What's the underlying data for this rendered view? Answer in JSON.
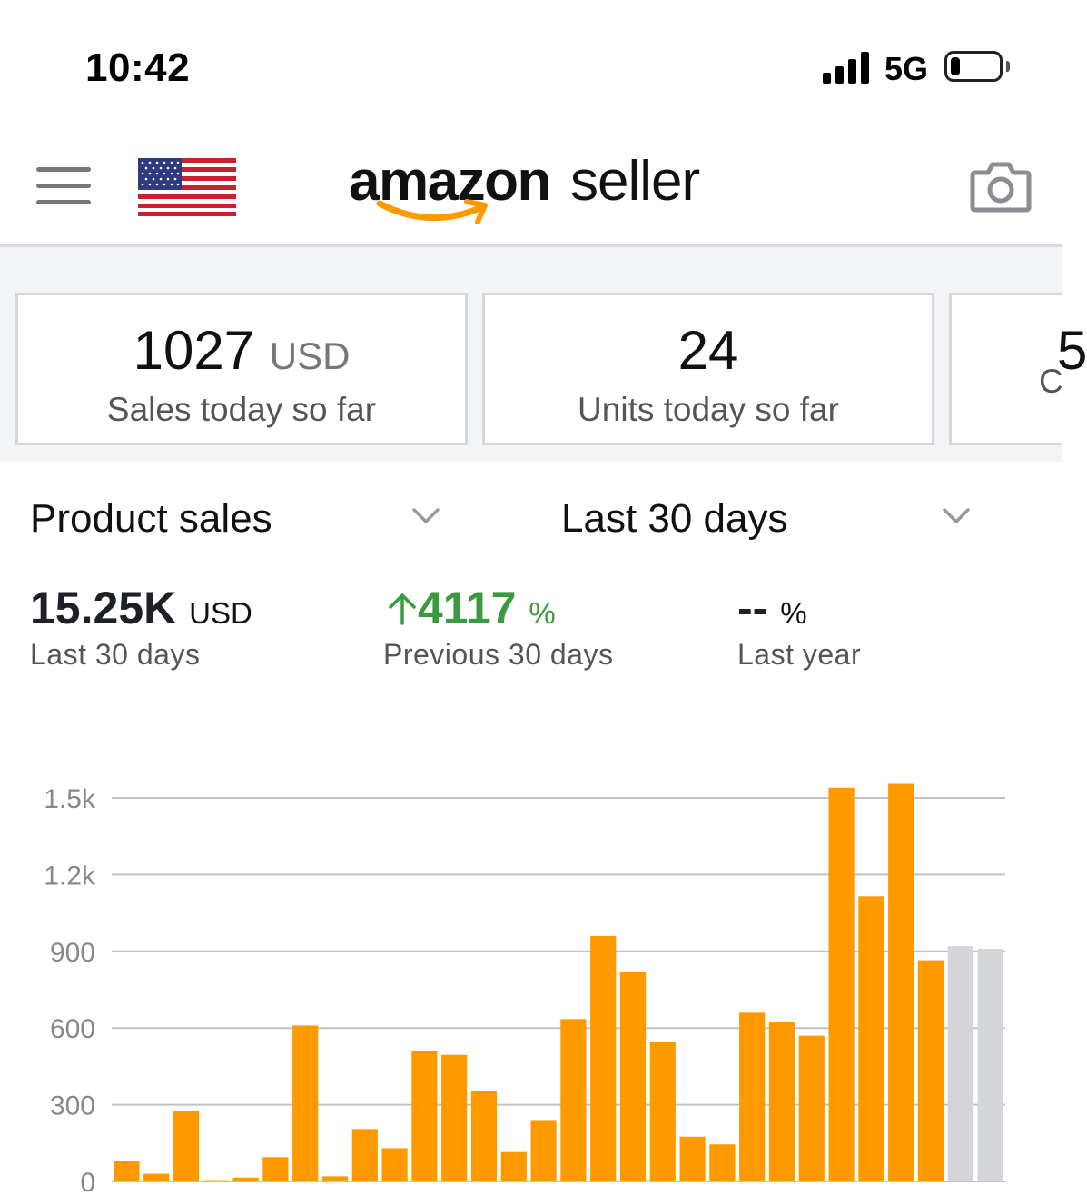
{
  "status_bar": {
    "time": "10:42",
    "network": "5G",
    "battery_level": 0.2
  },
  "header": {
    "logo_text_bold": "amazon",
    "logo_text_light": "seller",
    "menu_icon": "hamburger-menu-icon",
    "flag_icon": "us-flag-icon",
    "camera_icon": "camera-icon",
    "colors": {
      "logo_smile": "#ff9900"
    }
  },
  "cards": [
    {
      "value": "1027",
      "unit": "USD",
      "label": "Sales today so far"
    },
    {
      "value": "24",
      "unit": "",
      "label": "Units today so far"
    },
    {
      "value": "5",
      "unit": "",
      "label": "C"
    }
  ],
  "filters": {
    "metric": "Product sales",
    "period": "Last 30 days"
  },
  "metrics": {
    "total": {
      "value": "15.25K",
      "unit": "USD",
      "label": "Last 30 days"
    },
    "change_prev": {
      "value": "4117",
      "unit": "%",
      "label": "Previous 30 days"
    },
    "change_year": {
      "value": "--",
      "unit": "%",
      "label": "Last year"
    }
  },
  "chart_data": {
    "type": "bar",
    "y_ticks": [
      "1.5k",
      "1.2k",
      "900",
      "600",
      "300",
      "0"
    ],
    "y_tick_values": [
      1500,
      1200,
      900,
      600,
      300,
      0
    ],
    "ylim": [
      0,
      1500
    ],
    "grid": true,
    "colors": {
      "bar": "#ff9900",
      "bar_comparison": "#d3d5d8",
      "grid": "#bfc3c7"
    },
    "values": [
      80,
      30,
      275,
      5,
      15,
      95,
      610,
      20,
      205,
      130,
      510,
      495,
      355,
      115,
      240,
      635,
      960,
      820,
      545,
      175,
      145,
      660,
      625,
      570,
      1540,
      1115,
      1555,
      865
    ],
    "comparison_values": [
      920,
      910
    ]
  }
}
